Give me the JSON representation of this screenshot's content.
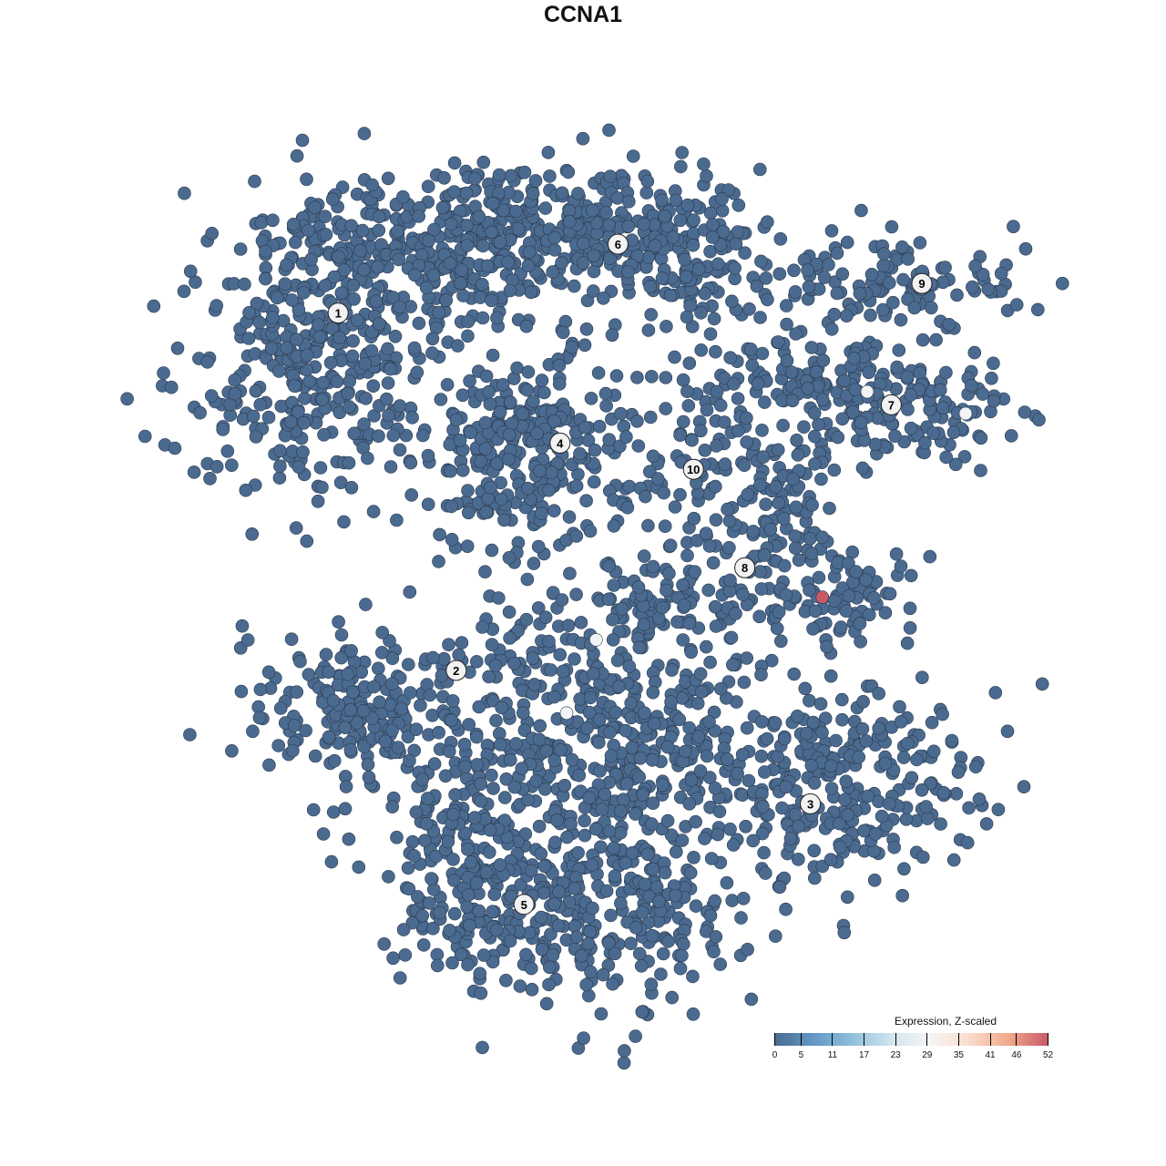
{
  "chart_data": {
    "type": "scatter",
    "title": "CCNA1",
    "xlabel": "",
    "ylabel": "",
    "xlim": [
      -40,
      40
    ],
    "ylim": [
      -40,
      40
    ],
    "grid": false,
    "axes_visible": false,
    "point_fill_default": "#4b6a8f",
    "point_stroke": "#2a3a4f",
    "clusters": [
      {
        "label": "1",
        "label_pos": [
          -22.4,
          24.7
        ],
        "blobs": [
          {
            "center": [
              -25,
              20.8
            ],
            "spread": [
              5.8,
              6.7
            ],
            "n": 400
          },
          {
            "center": [
              -13.3,
              30
            ],
            "spread": [
              7.5,
              3.3
            ],
            "n": 250
          }
        ]
      },
      {
        "label": "2",
        "label_pos": [
          -11.6,
          -8
        ],
        "blobs": [
          {
            "center": [
              -20,
              -11.7
            ],
            "spread": [
              5,
              4.2
            ],
            "n": 200
          }
        ]
      },
      {
        "label": "3",
        "label_pos": [
          20.8,
          -20.2
        ],
        "blobs": [
          {
            "center": [
              21.7,
              -18.3
            ],
            "spread": [
              7.5,
              5
            ],
            "n": 300
          },
          {
            "center": [
              1.7,
              -13.3
            ],
            "spread": [
              7.5,
              7.5
            ],
            "n": 500
          }
        ]
      },
      {
        "label": "4",
        "label_pos": [
          -2.1,
          12.8
        ],
        "blobs": [
          {
            "center": [
              -5,
              12.1
            ],
            "spread": [
              4.6,
              4.6
            ],
            "n": 300
          }
        ]
      },
      {
        "label": "5",
        "label_pos": [
          -5.4,
          -29.4
        ],
        "blobs": [
          {
            "center": [
              -1.7,
              -30
            ],
            "spread": [
              8.3,
              4.2
            ],
            "n": 350
          },
          {
            "center": [
              -11.7,
              -23.3
            ],
            "spread": [
              2.5,
              4.2
            ],
            "n": 100
          }
        ]
      },
      {
        "label": "6",
        "label_pos": [
          3.2,
          31
        ],
        "blobs": [
          {
            "center": [
              -1.7,
              32.5
            ],
            "spread": [
              8.3,
              2.9
            ],
            "n": 300
          },
          {
            "center": [
              10,
              29.2
            ],
            "spread": [
              4.2,
              3.3
            ],
            "n": 120
          }
        ]
      },
      {
        "label": "7",
        "label_pos": [
          28.2,
          16.3
        ],
        "blobs": [
          {
            "center": [
              30,
              15.8
            ],
            "spread": [
              5,
              2.5
            ],
            "n": 150
          },
          {
            "center": [
              20,
              19.2
            ],
            "spread": [
              4.2,
              2.1
            ],
            "n": 80
          }
        ]
      },
      {
        "label": "8",
        "label_pos": [
          14.8,
          1.4
        ],
        "blobs": [
          {
            "center": [
              18.3,
              6.7
            ],
            "spread": [
              2.5,
              4.2
            ],
            "n": 100
          },
          {
            "center": [
              23.3,
              -1.25
            ],
            "spread": [
              3.3,
              2.1
            ],
            "n": 80
          },
          {
            "center": [
              8.3,
              -0.8
            ],
            "spread": [
              5,
              2.1
            ],
            "n": 80
          }
        ]
      },
      {
        "label": "9",
        "label_pos": [
          31,
          27.4
        ],
        "blobs": [
          {
            "center": [
              28.3,
              27.5
            ],
            "spread": [
              5.8,
              2.1
            ],
            "n": 120
          }
        ]
      },
      {
        "label": "10",
        "label_pos": [
          10.1,
          10.4
        ],
        "blobs": [
          {
            "center": [
              10,
              12.5
            ],
            "spread": [
              3.3,
              4.2
            ],
            "n": 80
          }
        ]
      }
    ],
    "expressing_points": [
      {
        "x": 21.9,
        "y": -1.3,
        "value": 52
      },
      {
        "x": 1.2,
        "y": -5.2,
        "value": 29
      },
      {
        "x": -1.5,
        "y": -11.9,
        "value": 29
      },
      {
        "x": 26,
        "y": 17.5,
        "value": 29
      },
      {
        "x": 35,
        "y": 15.5,
        "value": 29
      }
    ],
    "legend": {
      "title": "Expression, Z-scaled",
      "placement": "bottom-right",
      "ticks": [
        "0",
        "5",
        "11",
        "17",
        "23",
        "29",
        "35",
        "41",
        "46",
        "52"
      ],
      "range": [
        0,
        52
      ],
      "colors": [
        "#4b6a8f",
        "#6497c6",
        "#8fc0da",
        "#d2e5ef",
        "#f5f5f5",
        "#fadccc",
        "#f0a98c",
        "#c85a67"
      ]
    }
  }
}
